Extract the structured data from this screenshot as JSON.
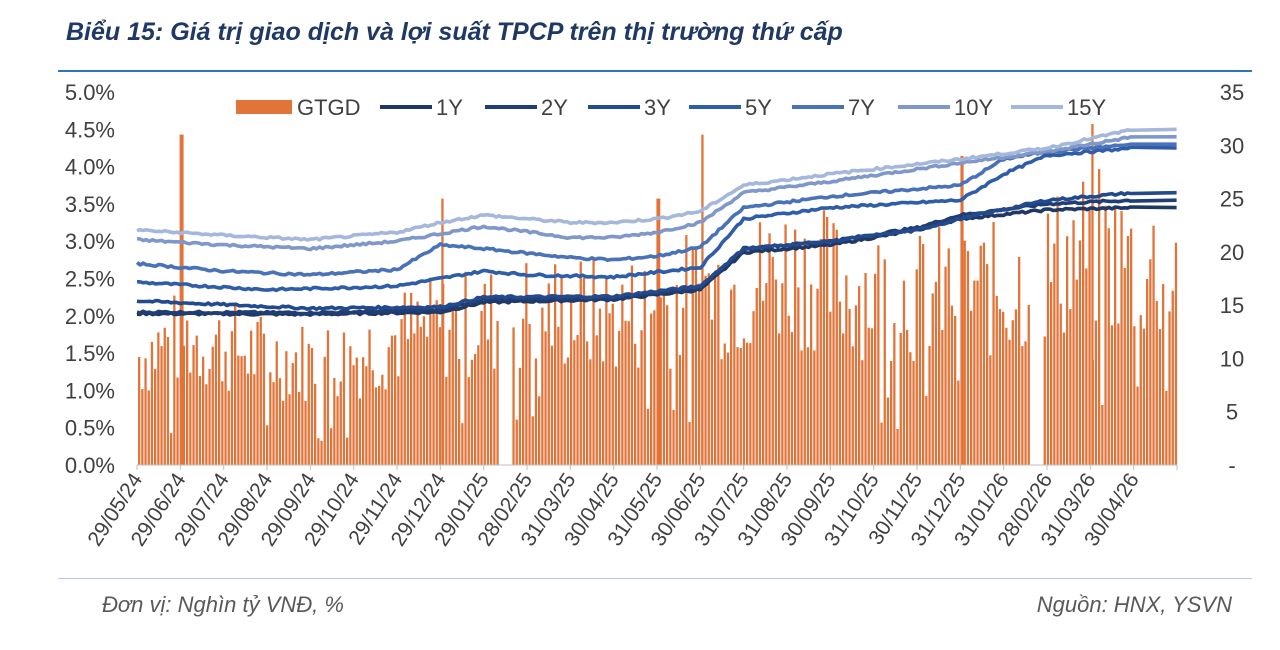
{
  "title": "Biểu 15: Giá trị giao dịch và lợi suất TPCP trên thị trường thứ cấp",
  "footer": {
    "unit": "Đơn vị: Nghìn tỷ VNĐ, %",
    "source": "Nguồn: HNX, YSVN"
  },
  "colors": {
    "title": "#1f3864",
    "bars": "#e2743a",
    "footer": "#595959"
  },
  "chart_data": {
    "type": "bar+line",
    "x_ticks": [
      "29/05/24",
      "29/06/24",
      "29/07/24",
      "29/08/24",
      "29/09/24",
      "29/10/24",
      "29/11/24",
      "29/12/24",
      "29/01/25",
      "28/02/25",
      "31/03/25",
      "30/04/25",
      "31/05/25",
      "30/06/25",
      "31/07/25",
      "31/08/25",
      "30/09/25",
      "31/10/25",
      "30/11/25",
      "31/12/25",
      "31/01/26",
      "28/02/26",
      "31/03/26",
      "30/04/26"
    ],
    "y_left": {
      "ticks": [
        "0.0%",
        "0.5%",
        "1.0%",
        "1.5%",
        "2.0%",
        "2.5%",
        "3.0%",
        "3.5%",
        "4.0%",
        "4.5%",
        "5.0%"
      ],
      "range": [
        0,
        5
      ]
    },
    "y_right": {
      "ticks": [
        "-",
        "5",
        "10",
        "15",
        "20",
        "25",
        "30",
        "35"
      ],
      "range": [
        0,
        35
      ]
    },
    "bar_series": {
      "name": "GTGD",
      "color": "#e2743a",
      "period_levels": [
        [
          0,
          11
        ],
        [
          1,
          13
        ],
        [
          2,
          12
        ],
        [
          3,
          11
        ],
        [
          4,
          10.5
        ],
        [
          5,
          11
        ],
        [
          6,
          13
        ],
        [
          7,
          14
        ],
        [
          8,
          14.5
        ],
        [
          9,
          15.5
        ],
        [
          10,
          15.5
        ],
        [
          11,
          15
        ],
        [
          12,
          16
        ],
        [
          13,
          17.5
        ],
        [
          14,
          18
        ],
        [
          15,
          20
        ],
        [
          16,
          18.5
        ],
        [
          17,
          17.5
        ],
        [
          18,
          17
        ],
        [
          19,
          18
        ],
        [
          20,
          17.5
        ],
        [
          21,
          20
        ],
        [
          22,
          22
        ],
        [
          23,
          20
        ]
      ],
      "spikes": [
        [
          1,
          31
        ],
        [
          7,
          25
        ],
        [
          12,
          25
        ],
        [
          13,
          31
        ],
        [
          19,
          29
        ],
        [
          22,
          32
        ]
      ],
      "gaps": [
        [
          8.3,
          8.6
        ],
        [
          20.6,
          20.9
        ]
      ]
    },
    "series": [
      {
        "name": "1Y",
        "color": "#1f3864",
        "values": [
          [
            0,
            2.03
          ],
          [
            4,
            2.02
          ],
          [
            7,
            2.05
          ],
          [
            8,
            2.18
          ],
          [
            11,
            2.22
          ],
          [
            13,
            2.35
          ],
          [
            14,
            2.85
          ],
          [
            16,
            2.95
          ],
          [
            18,
            3.15
          ],
          [
            19,
            3.3
          ],
          [
            21,
            3.42
          ],
          [
            23,
            3.45
          ]
        ]
      },
      {
        "name": "2Y",
        "color": "#203e76",
        "values": [
          [
            0,
            2.05
          ],
          [
            4,
            2.04
          ],
          [
            7,
            2.08
          ],
          [
            8,
            2.22
          ],
          [
            11,
            2.24
          ],
          [
            13,
            2.38
          ],
          [
            14,
            2.9
          ],
          [
            16,
            3.0
          ],
          [
            18,
            3.18
          ],
          [
            19,
            3.35
          ],
          [
            21,
            3.5
          ],
          [
            23,
            3.55
          ]
        ]
      },
      {
        "name": "3Y",
        "color": "#234a8c",
        "values": [
          [
            0,
            2.2
          ],
          [
            4,
            2.1
          ],
          [
            7,
            2.12
          ],
          [
            8,
            2.25
          ],
          [
            11,
            2.26
          ],
          [
            13,
            2.4
          ],
          [
            14,
            2.9
          ],
          [
            16,
            3.0
          ],
          [
            18,
            3.15
          ],
          [
            19,
            3.3
          ],
          [
            21,
            3.55
          ],
          [
            23,
            3.65
          ]
        ]
      },
      {
        "name": "5Y",
        "color": "#2f5da8",
        "values": [
          [
            0,
            2.45
          ],
          [
            3,
            2.35
          ],
          [
            5,
            2.38
          ],
          [
            6,
            2.4
          ],
          [
            8,
            2.6
          ],
          [
            9,
            2.55
          ],
          [
            11,
            2.52
          ],
          [
            13,
            2.65
          ],
          [
            14,
            3.3
          ],
          [
            16,
            3.45
          ],
          [
            19,
            3.55
          ],
          [
            20,
            3.9
          ],
          [
            21,
            4.15
          ],
          [
            23,
            4.25
          ]
        ]
      },
      {
        "name": "7Y",
        "color": "#4a72b8",
        "values": [
          [
            0,
            2.7
          ],
          [
            2,
            2.6
          ],
          [
            4,
            2.55
          ],
          [
            6,
            2.62
          ],
          [
            7,
            2.95
          ],
          [
            8,
            2.9
          ],
          [
            10,
            2.78
          ],
          [
            11,
            2.75
          ],
          [
            12,
            2.8
          ],
          [
            13,
            2.92
          ],
          [
            14,
            3.45
          ],
          [
            16,
            3.6
          ],
          [
            19,
            3.75
          ],
          [
            20,
            4.1
          ],
          [
            21,
            4.2
          ],
          [
            23,
            4.3
          ]
        ]
      },
      {
        "name": "10Y",
        "color": "#7f98c9",
        "values": [
          [
            0,
            3.02
          ],
          [
            2,
            2.95
          ],
          [
            4,
            2.9
          ],
          [
            6,
            3.0
          ],
          [
            7,
            3.1
          ],
          [
            8,
            3.2
          ],
          [
            10,
            3.05
          ],
          [
            11,
            3.05
          ],
          [
            12,
            3.12
          ],
          [
            13,
            3.25
          ],
          [
            14,
            3.65
          ],
          [
            16,
            3.8
          ],
          [
            19,
            4.05
          ],
          [
            21,
            4.2
          ],
          [
            23,
            4.4
          ]
        ]
      },
      {
        "name": "15Y",
        "color": "#a5b8dc",
        "values": [
          [
            0,
            3.15
          ],
          [
            2,
            3.08
          ],
          [
            4,
            3.02
          ],
          [
            6,
            3.12
          ],
          [
            7,
            3.25
          ],
          [
            8,
            3.35
          ],
          [
            10,
            3.25
          ],
          [
            11,
            3.25
          ],
          [
            12,
            3.3
          ],
          [
            13,
            3.4
          ],
          [
            14,
            3.75
          ],
          [
            16,
            3.9
          ],
          [
            19,
            4.1
          ],
          [
            21,
            4.25
          ],
          [
            23,
            4.5
          ]
        ]
      }
    ],
    "legend": [
      "GTGD",
      "1Y",
      "2Y",
      "3Y",
      "5Y",
      "7Y",
      "10Y",
      "15Y"
    ]
  }
}
